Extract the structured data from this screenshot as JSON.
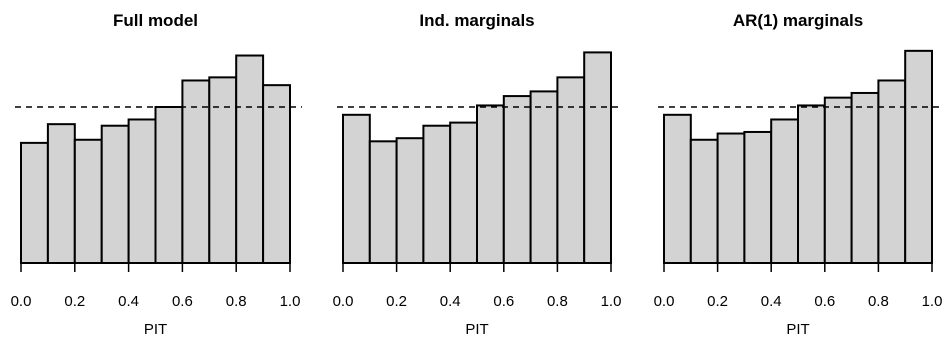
{
  "chart_data": [
    {
      "type": "bar",
      "title": "Full model",
      "xlabel": "PIT",
      "ylabel": "",
      "xlim": [
        0,
        1
      ],
      "xticks": [
        "0.0",
        "0.2",
        "0.4",
        "0.6",
        "0.8",
        "1.0"
      ],
      "bin_edges": [
        0.0,
        0.1,
        0.2,
        0.3,
        0.4,
        0.5,
        0.6,
        0.7,
        0.8,
        0.9,
        1.0
      ],
      "values": [
        0.77,
        0.89,
        0.79,
        0.88,
        0.92,
        1.0,
        1.17,
        1.19,
        1.33,
        1.14
      ],
      "reference_line": 1.0,
      "ylim": [
        0,
        1.45
      ]
    },
    {
      "type": "bar",
      "title": "Ind. marginals",
      "xlabel": "PIT",
      "ylabel": "",
      "xlim": [
        0,
        1
      ],
      "xticks": [
        "0.0",
        "0.2",
        "0.4",
        "0.6",
        "0.8",
        "1.0"
      ],
      "bin_edges": [
        0.0,
        0.1,
        0.2,
        0.3,
        0.4,
        0.5,
        0.6,
        0.7,
        0.8,
        0.9,
        1.0
      ],
      "values": [
        0.95,
        0.78,
        0.8,
        0.88,
        0.9,
        1.01,
        1.07,
        1.1,
        1.19,
        1.35
      ],
      "reference_line": 1.0,
      "ylim": [
        0,
        1.45
      ]
    },
    {
      "type": "bar",
      "title": "AR(1) marginals",
      "xlabel": "PIT",
      "ylabel": "",
      "xlim": [
        0,
        1
      ],
      "xticks": [
        "0.0",
        "0.2",
        "0.4",
        "0.6",
        "0.8",
        "1.0"
      ],
      "bin_edges": [
        0.0,
        0.1,
        0.2,
        0.3,
        0.4,
        0.5,
        0.6,
        0.7,
        0.8,
        0.9,
        1.0
      ],
      "values": [
        0.95,
        0.79,
        0.83,
        0.84,
        0.92,
        1.01,
        1.06,
        1.09,
        1.17,
        1.36
      ],
      "reference_line": 1.0,
      "ylim": [
        0,
        1.45
      ]
    }
  ]
}
